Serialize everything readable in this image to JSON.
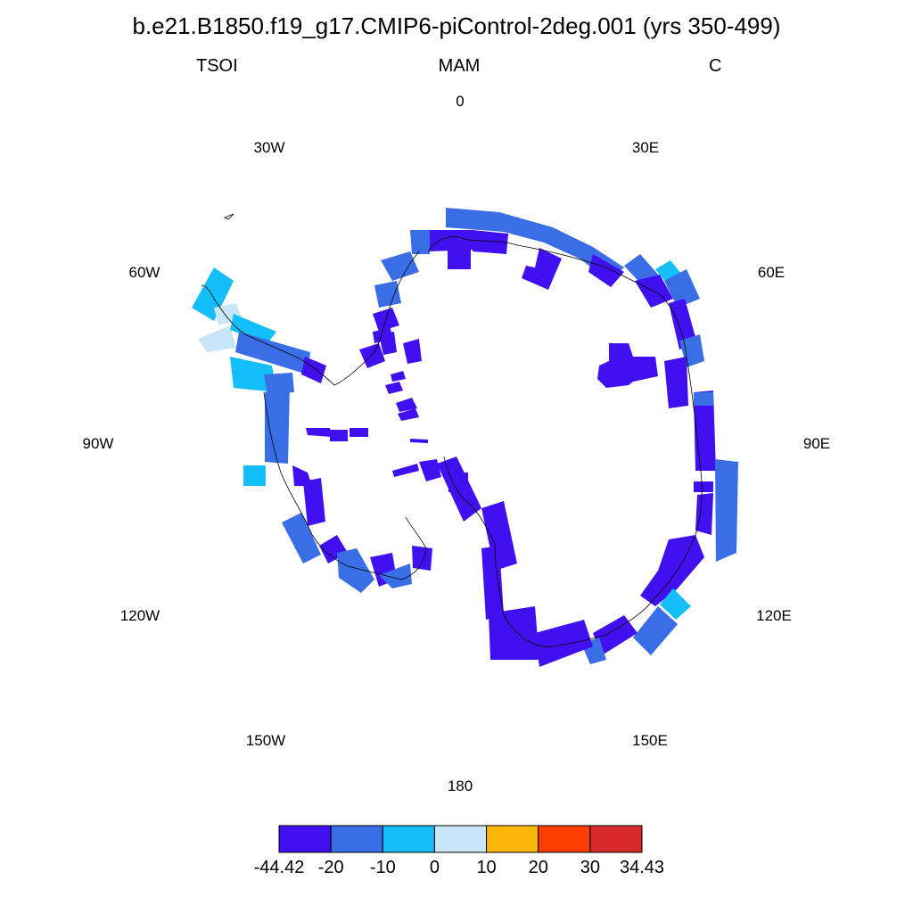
{
  "title": "b.e21.B1850.f19_g17.CMIP6-piControl-2deg.001 (yrs 350-499)",
  "subtitle": {
    "left": "TSOI",
    "center": "MAM",
    "right": "C"
  },
  "longitude_labels": {
    "lon_0": "0",
    "lon_30e": "30E",
    "lon_60e": "60E",
    "lon_90e": "90E",
    "lon_120e": "120E",
    "lon_150e": "150E",
    "lon_180": "180",
    "lon_150w": "150W",
    "lon_120w": "120W",
    "lon_90w": "90W",
    "lon_60w": "60W",
    "lon_30w": "30W"
  },
  "colorbar": {
    "colors": [
      "#4010f0",
      "#3a6ee6",
      "#14bef8",
      "#c8e6f8",
      "#fcb80a",
      "#fc3c00",
      "#d82a2a"
    ],
    "labels": [
      "-44.42",
      "-20",
      "-10",
      "0",
      "10",
      "20",
      "30",
      "34.43"
    ]
  },
  "palette": {
    "level1": "#4010f0",
    "level2": "#3a6ee6",
    "level3": "#14bef8",
    "level4": "#c8e6f8"
  }
}
